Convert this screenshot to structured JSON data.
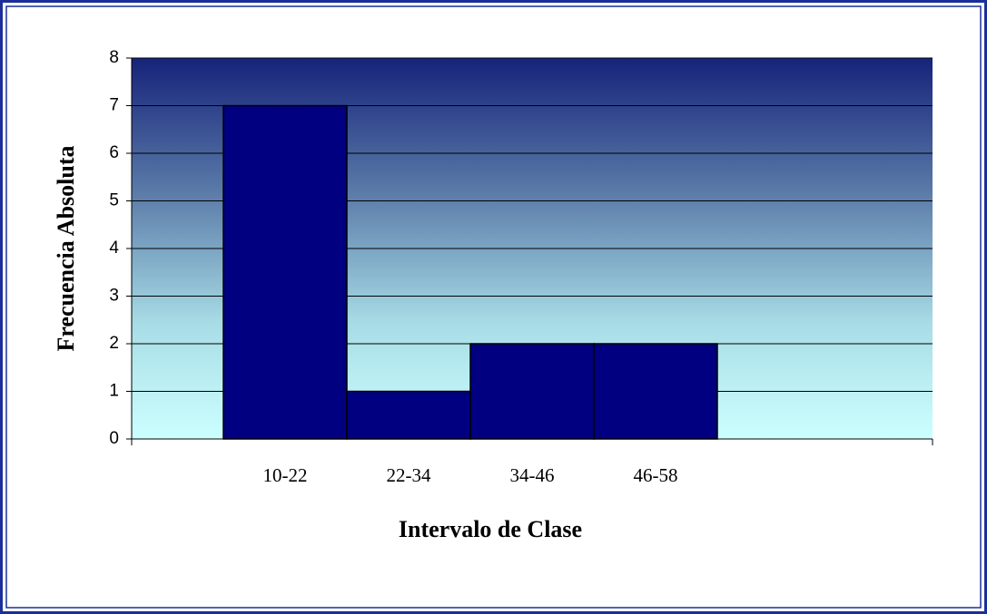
{
  "chart_data": {
    "type": "bar",
    "categories": [
      "10-22",
      "22-34",
      "34-46",
      "46-58"
    ],
    "values": [
      7,
      1,
      2,
      2
    ],
    "color": "#000080",
    "x_label": "Intervalo de Clase",
    "y_label": "Frecuencia Absoluta",
    "ylim": [
      0,
      8
    ],
    "yticks": [
      0,
      1,
      2,
      3,
      4,
      5,
      6,
      7,
      8
    ],
    "grid": true
  }
}
